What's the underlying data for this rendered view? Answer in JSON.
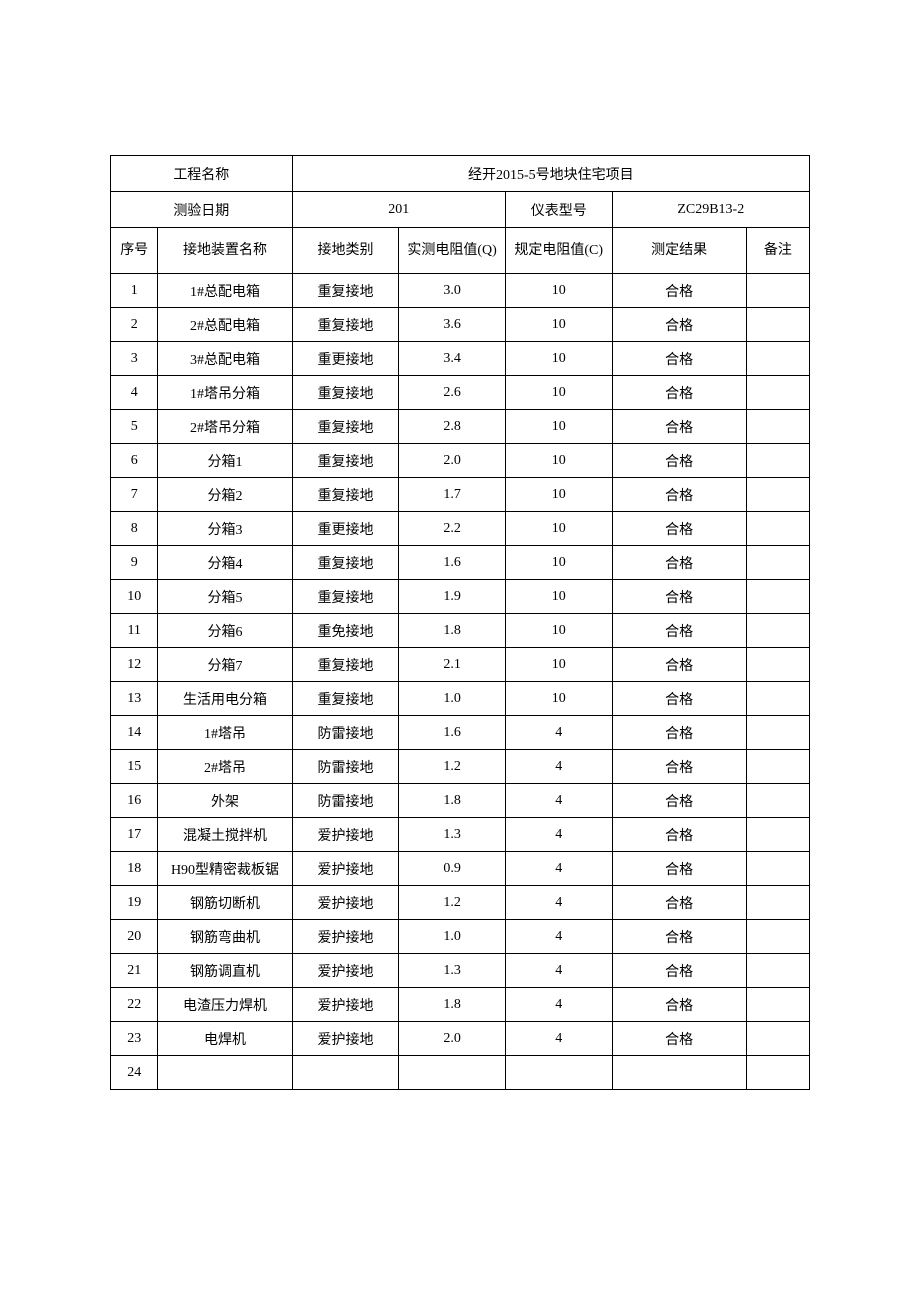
{
  "header": {
    "project_name_label": "工程名称",
    "project_name_value": "经开2015-5号地块住宅项目",
    "test_date_label": "测验日期",
    "test_date_value": "201",
    "instrument_model_label": "仪表型号",
    "instrument_model_value": "ZC29B13-2"
  },
  "columns": {
    "seq": "序号",
    "device_name": "接地装置名称",
    "ground_type": "接地类别",
    "measured_resistance": "实测电阻值(Q)",
    "spec_resistance": "规定电阻值(C)",
    "result": "测定结果",
    "note": "备注"
  },
  "rows": [
    {
      "seq": "1",
      "device": "1#总配电箱",
      "type": "重复接地",
      "measured": "3.0",
      "spec": "10",
      "result": "合格",
      "note": ""
    },
    {
      "seq": "2",
      "device": "2#总配电箱",
      "type": "重复接地",
      "measured": "3.6",
      "spec": "10",
      "result": "合格",
      "note": ""
    },
    {
      "seq": "3",
      "device": "3#总配电箱",
      "type": "重更接地",
      "measured": "3.4",
      "spec": "10",
      "result": "合格",
      "note": ""
    },
    {
      "seq": "4",
      "device": "1#塔吊分箱",
      "type": "重复接地",
      "measured": "2.6",
      "spec": "10",
      "result": "合格",
      "note": ""
    },
    {
      "seq": "5",
      "device": "2#塔吊分箱",
      "type": "重复接地",
      "measured": "2.8",
      "spec": "10",
      "result": "合格",
      "note": ""
    },
    {
      "seq": "6",
      "device": "分箱1",
      "type": "重复接地",
      "measured": "2.0",
      "spec": "10",
      "result": "合格",
      "note": ""
    },
    {
      "seq": "7",
      "device": "分箱2",
      "type": "重复接地",
      "measured": "1.7",
      "spec": "10",
      "result": "合格",
      "note": ""
    },
    {
      "seq": "8",
      "device": "分箱3",
      "type": "重更接地",
      "measured": "2.2",
      "spec": "10",
      "result": "合格",
      "note": ""
    },
    {
      "seq": "9",
      "device": "分箱4",
      "type": "重复接地",
      "measured": "1.6",
      "spec": "10",
      "result": "合格",
      "note": ""
    },
    {
      "seq": "10",
      "device": "分箱5",
      "type": "重复接地",
      "measured": "1.9",
      "spec": "10",
      "result": "合格",
      "note": ""
    },
    {
      "seq": "11",
      "device": "分箱6",
      "type": "重免接地",
      "measured": "1.8",
      "spec": "10",
      "result": "合格",
      "note": ""
    },
    {
      "seq": "12",
      "device": "分箱7",
      "type": "重复接地",
      "measured": "2.1",
      "spec": "10",
      "result": "合格",
      "note": ""
    },
    {
      "seq": "13",
      "device": "生活用电分箱",
      "type": "重复接地",
      "measured": "1.0",
      "spec": "10",
      "result": "合格",
      "note": ""
    },
    {
      "seq": "14",
      "device": "1#塔吊",
      "type": "防雷接地",
      "measured": "1.6",
      "spec": "4",
      "result": "合格",
      "note": ""
    },
    {
      "seq": "15",
      "device": "2#塔吊",
      "type": "防雷接地",
      "measured": "1.2",
      "spec": "4",
      "result": "合格",
      "note": ""
    },
    {
      "seq": "16",
      "device": "外架",
      "type": "防雷接地",
      "measured": "1.8",
      "spec": "4",
      "result": "合格",
      "note": ""
    },
    {
      "seq": "17",
      "device": "混凝土搅拌机",
      "type": "爱护接地",
      "measured": "1.3",
      "spec": "4",
      "result": "合格",
      "note": ""
    },
    {
      "seq": "18",
      "device": "H90型精密裁板锯",
      "type": "爱护接地",
      "measured": "0.9",
      "spec": "4",
      "result": "合格",
      "note": ""
    },
    {
      "seq": "19",
      "device": "钢筋切断机",
      "type": "爱护接地",
      "measured": "1.2",
      "spec": "4",
      "result": "合格",
      "note": ""
    },
    {
      "seq": "20",
      "device": "钢筋弯曲机",
      "type": "爱护接地",
      "measured": "1.0",
      "spec": "4",
      "result": "合格",
      "note": ""
    },
    {
      "seq": "21",
      "device": "钢筋调直机",
      "type": "爱护接地",
      "measured": "1.3",
      "spec": "4",
      "result": "合格",
      "note": ""
    },
    {
      "seq": "22",
      "device": "电渣压力焊机",
      "type": "爱护接地",
      "measured": "1.8",
      "spec": "4",
      "result": "合格",
      "note": ""
    },
    {
      "seq": "23",
      "device": "电焊机",
      "type": "爱护接地",
      "measured": "2.0",
      "spec": "4",
      "result": "合格",
      "note": ""
    },
    {
      "seq": "24",
      "device": "",
      "type": "",
      "measured": "",
      "spec": "",
      "result": "",
      "note": ""
    }
  ]
}
